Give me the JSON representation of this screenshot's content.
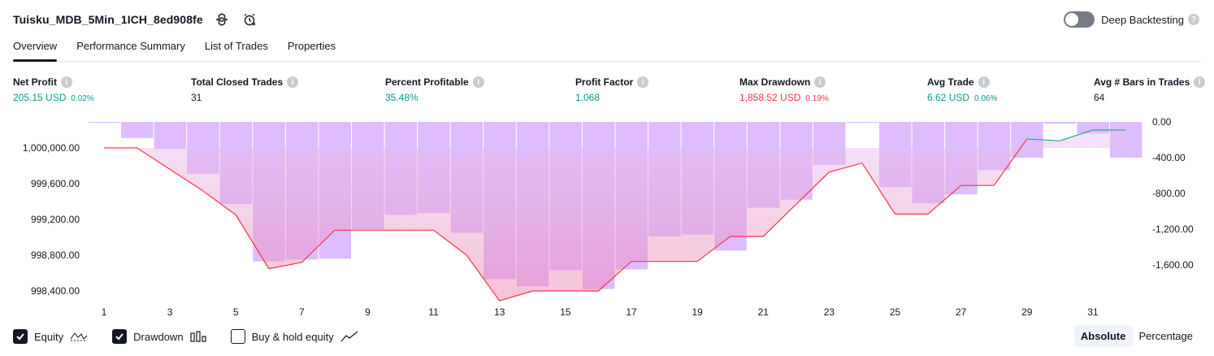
{
  "header": {
    "title": "Tuisku_MDB_5Min_1ICH_8ed908fe",
    "settings_icon": "gear-icon",
    "alert_icon": "alarm-clock-icon"
  },
  "deep_backtesting": {
    "label": "Deep Backtesting",
    "enabled": false
  },
  "tabs": [
    {
      "label": "Overview",
      "active": true
    },
    {
      "label": "Performance Summary",
      "active": false
    },
    {
      "label": "List of Trades",
      "active": false
    },
    {
      "label": "Properties",
      "active": false
    }
  ],
  "metrics": [
    {
      "label": "Net Profit",
      "value": "205.15 USD",
      "pct": "0.02%",
      "tone": "pos"
    },
    {
      "label": "Total Closed Trades",
      "value": "31",
      "pct": "",
      "tone": "neu"
    },
    {
      "label": "Percent Profitable",
      "value": "35.48%",
      "pct": "",
      "tone": "pos"
    },
    {
      "label": "Profit Factor",
      "value": "1.068",
      "pct": "",
      "tone": "pos"
    },
    {
      "label": "Max Drawdown",
      "value": "1,858.52 USD",
      "pct": "0.19%",
      "tone": "neg"
    },
    {
      "label": "Avg Trade",
      "value": "6.62 USD",
      "pct": "0.06%",
      "tone": "pos"
    },
    {
      "label": "Avg # Bars in Trades",
      "value": "64",
      "pct": "",
      "tone": "neu"
    }
  ],
  "chart_data": {
    "type": "line",
    "x_ticks": [
      "1",
      "3",
      "5",
      "7",
      "9",
      "11",
      "13",
      "15",
      "17",
      "19",
      "21",
      "23",
      "25",
      "27",
      "29",
      "31"
    ],
    "left_axis_ticks": [
      "1,000,000.00",
      "999,600.00",
      "999,200.00",
      "998,800.00",
      "998,400.00"
    ],
    "right_axis_ticks": [
      "0.00",
      "-400.00",
      "-800.00",
      "-1,200.00",
      "-1,600.00"
    ],
    "equity_ylim": [
      998200,
      1000200
    ],
    "drawdown_ylim": [
      -2000,
      0
    ],
    "series": [
      {
        "name": "Equity",
        "x": [
          1,
          2,
          3,
          4,
          5,
          6,
          7,
          8,
          9,
          10,
          11,
          12,
          13,
          14,
          15,
          16,
          17,
          18,
          19,
          20,
          21,
          22,
          23,
          24,
          25,
          26,
          27,
          28,
          29,
          30,
          31,
          32
        ],
        "values": [
          1000000,
          1000000,
          999760,
          999520,
          999250,
          998650,
          998720,
          999080,
          999080,
          999080,
          999080,
          998800,
          998290,
          998400,
          998400,
          998400,
          998730,
          998730,
          998730,
          999010,
          999010,
          999370,
          999730,
          999830,
          999260,
          999260,
          999580,
          999580,
          1000100,
          1000080,
          1000200,
          1000200
        ]
      },
      {
        "name": "Drawdown",
        "x": [
          1,
          2,
          3,
          4,
          5,
          6,
          7,
          8,
          9,
          10,
          11,
          12,
          13,
          14,
          15,
          16,
          17,
          18,
          19,
          20,
          21,
          22,
          23,
          24,
          25,
          26,
          27,
          28,
          29,
          30,
          31,
          32
        ],
        "values": [
          -10,
          -180,
          -300,
          -580,
          -920,
          -1560,
          -1540,
          -1530,
          -1200,
          -1040,
          -1020,
          -1240,
          -1760,
          -1840,
          -1660,
          -1870,
          -1650,
          -1280,
          -1260,
          -1440,
          -960,
          -870,
          -480,
          -10,
          -730,
          -910,
          -810,
          -540,
          -400,
          -20,
          -130,
          -400
        ]
      }
    ],
    "colors": {
      "equity_down": "#f23645",
      "equity_up": "#26a69a",
      "drawdown_bar": "#d1a7ff",
      "drawdown_fill_top": "#e0b8f5",
      "drawdown_fill_bottom": "#f48fb1"
    }
  },
  "legend": [
    {
      "label": "Equity",
      "checked": true,
      "icon": "equity-line-icon"
    },
    {
      "label": "Drawdown",
      "checked": true,
      "icon": "bars-icon"
    },
    {
      "label": "Buy & hold equity",
      "checked": false,
      "icon": "trend-line-icon"
    }
  ],
  "modes": [
    {
      "label": "Absolute",
      "active": true
    },
    {
      "label": "Percentage",
      "active": false
    }
  ]
}
